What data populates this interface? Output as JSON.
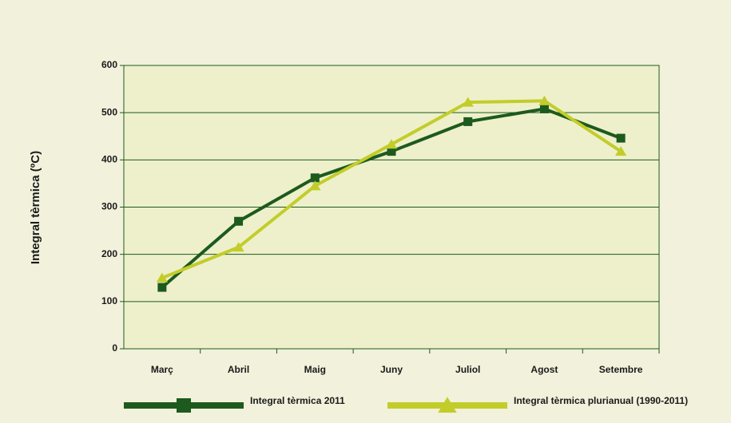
{
  "chart_data": {
    "type": "line",
    "y_label": "Integral tèrmica (ºC)",
    "categories": [
      "Març",
      "Abril",
      "Maig",
      "Juny",
      "Juliol",
      "Agost",
      "Setembre"
    ],
    "series": [
      {
        "name": "Integral tèrmica 2011",
        "color": "#1d5a1d",
        "marker": "square",
        "values": [
          130,
          270,
          362,
          418,
          481,
          508,
          446
        ]
      },
      {
        "name": "Integral tèrmica plurianual (1990-2011)",
        "color": "#c2cd2a",
        "marker": "triangle",
        "values": [
          150,
          215,
          345,
          433,
          522,
          525,
          418
        ]
      }
    ],
    "ylim": [
      0,
      600
    ],
    "yticks": [
      0,
      100,
      200,
      300,
      400,
      500,
      600
    ],
    "grid": true,
    "legend": "bottom"
  }
}
